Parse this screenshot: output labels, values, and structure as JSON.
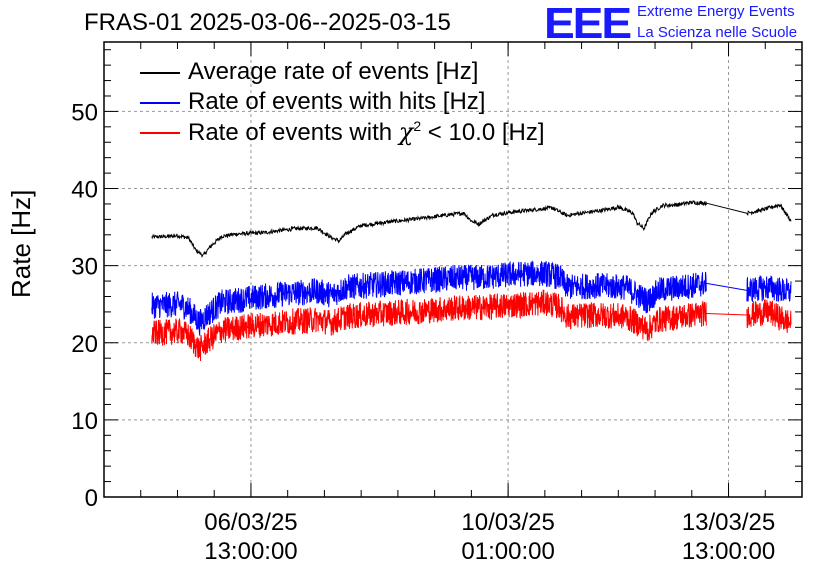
{
  "title": "FRAS-01 2025-03-06--2025-03-15",
  "logo": {
    "mark": "EEE",
    "line1": "Extreme Energy Events",
    "line2": "La Scienza nelle Scuole",
    "color": "#1a1aff"
  },
  "chart_data": {
    "type": "line",
    "ylabel": "Rate [Hz]",
    "xlabel": "",
    "ylim": [
      0,
      59
    ],
    "yticks": [
      0,
      10,
      20,
      30,
      40,
      50
    ],
    "xticks": [
      {
        "x": 1.0,
        "label1": "06/03/25",
        "label2": "13:00:00"
      },
      {
        "x": 4.5,
        "label1": "10/03/25",
        "label2": "01:00:00"
      },
      {
        "x": 7.5,
        "label1": "13/03/25",
        "label2": "13:00:00"
      }
    ],
    "xlim": [
      -1.0,
      8.5
    ],
    "grid": true,
    "legend_position": "top-left",
    "series": [
      {
        "name": "Average rate of events [Hz]",
        "color": "#000000",
        "noise": 0.25,
        "points": [
          [
            -0.35,
            33.7
          ],
          [
            -0.1,
            33.8
          ],
          [
            0.0,
            33.9
          ],
          [
            0.15,
            33.6
          ],
          [
            0.25,
            32.0
          ],
          [
            0.35,
            31.3
          ],
          [
            0.45,
            32.5
          ],
          [
            0.6,
            33.8
          ],
          [
            0.8,
            34.1
          ],
          [
            1.2,
            34.3
          ],
          [
            1.6,
            34.8
          ],
          [
            1.9,
            34.9
          ],
          [
            2.1,
            33.6
          ],
          [
            2.2,
            33.2
          ],
          [
            2.3,
            34.2
          ],
          [
            2.5,
            35.2
          ],
          [
            2.9,
            35.7
          ],
          [
            3.3,
            36.1
          ],
          [
            3.7,
            36.6
          ],
          [
            3.9,
            36.8
          ],
          [
            4.0,
            35.8
          ],
          [
            4.1,
            35.4
          ],
          [
            4.3,
            36.6
          ],
          [
            4.6,
            37.0
          ],
          [
            4.9,
            37.3
          ],
          [
            5.1,
            37.5
          ],
          [
            5.3,
            36.5
          ],
          [
            5.5,
            36.8
          ],
          [
            5.8,
            37.2
          ],
          [
            6.0,
            37.6
          ],
          [
            6.2,
            36.8
          ],
          [
            6.25,
            35.6
          ],
          [
            6.35,
            34.8
          ],
          [
            6.45,
            36.8
          ],
          [
            6.6,
            37.8
          ],
          [
            6.8,
            37.9
          ],
          [
            7.0,
            38.2
          ],
          [
            7.2,
            38.1
          ]
        ]
      },
      {
        "name": "Rate of events with hits [Hz]",
        "color": "#0000ff",
        "noise": 1.7,
        "points": [
          [
            -0.35,
            24.8
          ],
          [
            0.05,
            25.0
          ],
          [
            0.15,
            24.4
          ],
          [
            0.3,
            22.6
          ],
          [
            0.4,
            23.6
          ],
          [
            0.6,
            25.2
          ],
          [
            1.0,
            25.8
          ],
          [
            1.5,
            26.4
          ],
          [
            1.9,
            26.7
          ],
          [
            2.1,
            26.2
          ],
          [
            2.3,
            27.2
          ],
          [
            2.8,
            27.6
          ],
          [
            3.3,
            28.0
          ],
          [
            3.8,
            28.4
          ],
          [
            4.2,
            28.5
          ],
          [
            4.6,
            28.9
          ],
          [
            5.0,
            29.0
          ],
          [
            5.2,
            28.5
          ],
          [
            5.3,
            27.2
          ],
          [
            5.7,
            27.4
          ],
          [
            6.1,
            27.2
          ],
          [
            6.3,
            26.0
          ],
          [
            6.4,
            25.4
          ],
          [
            6.55,
            26.8
          ],
          [
            7.0,
            27.4
          ],
          [
            7.2,
            27.7
          ]
        ]
      },
      {
        "name": "Rate of events with χ² < 10.0 [Hz]",
        "color": "#ff0000",
        "noise": 1.7,
        "points": [
          [
            -0.35,
            21.2
          ],
          [
            0.05,
            21.5
          ],
          [
            0.15,
            20.9
          ],
          [
            0.3,
            19.1
          ],
          [
            0.4,
            20.1
          ],
          [
            0.6,
            21.6
          ],
          [
            1.0,
            22.2
          ],
          [
            1.5,
            22.7
          ],
          [
            1.9,
            23.0
          ],
          [
            2.1,
            22.6
          ],
          [
            2.3,
            23.4
          ],
          [
            2.8,
            23.8
          ],
          [
            3.3,
            24.1
          ],
          [
            3.8,
            24.5
          ],
          [
            4.2,
            24.6
          ],
          [
            4.6,
            24.9
          ],
          [
            5.0,
            25.2
          ],
          [
            5.2,
            24.7
          ],
          [
            5.3,
            23.4
          ],
          [
            5.7,
            23.6
          ],
          [
            6.1,
            23.4
          ],
          [
            6.3,
            22.3
          ],
          [
            6.4,
            21.7
          ],
          [
            6.55,
            23.0
          ],
          [
            7.0,
            23.6
          ],
          [
            7.2,
            23.8
          ]
        ]
      }
    ],
    "later_data": {
      "x_start": 7.75,
      "x_end": 8.35,
      "black": [
        [
          7.75,
          36.8
        ],
        [
          7.95,
          37.2
        ],
        [
          8.2,
          37.9
        ],
        [
          8.35,
          35.8
        ]
      ],
      "blue": [
        [
          7.75,
          26.8
        ],
        [
          8.05,
          27.2
        ],
        [
          8.35,
          26.5
        ]
      ],
      "red": [
        [
          7.75,
          23.6
        ],
        [
          8.05,
          24.0
        ],
        [
          8.35,
          22.5
        ]
      ]
    },
    "legend": [
      {
        "text_before": "Rate of events with ",
        "chi": "χ",
        "sup": "2",
        "text_after": " < 10.0 [Hz]"
      }
    ]
  }
}
